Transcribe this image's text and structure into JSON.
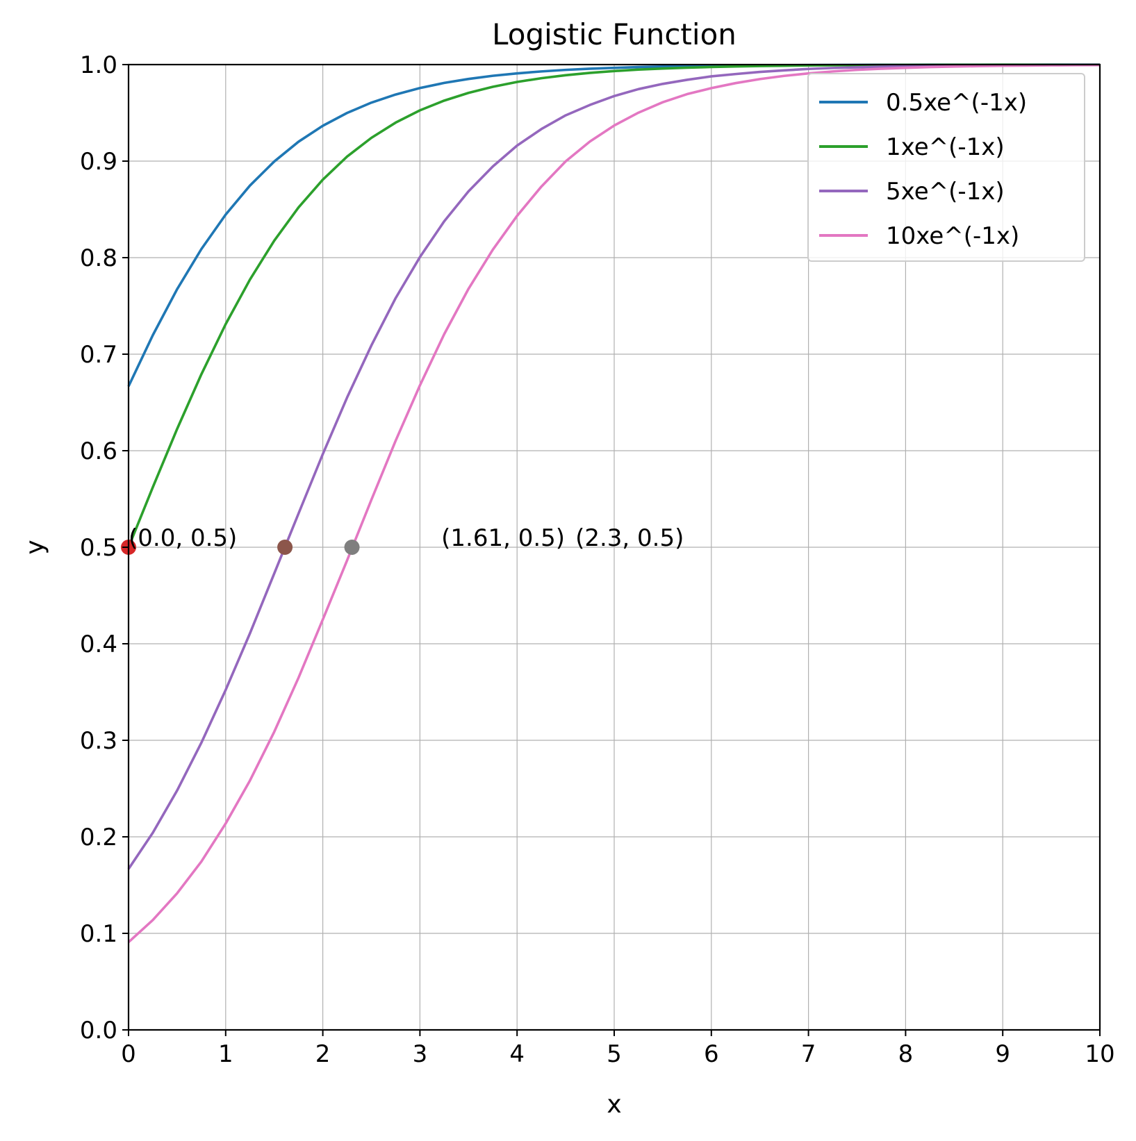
{
  "chart_data": {
    "type": "line",
    "title": "Logistic Function",
    "xlabel": "x",
    "ylabel": "y",
    "xlim": [
      0,
      10
    ],
    "ylim": [
      0,
      1.0
    ],
    "xticks": [
      "0",
      "1",
      "2",
      "3",
      "4",
      "5",
      "6",
      "7",
      "8",
      "9",
      "10"
    ],
    "yticks": [
      "0.0",
      "0.1",
      "0.2",
      "0.3",
      "0.4",
      "0.5",
      "0.6",
      "0.7",
      "0.8",
      "0.9",
      "1.0"
    ],
    "grid": true,
    "legend_position": "upper right",
    "x": [
      0,
      0.25,
      0.5,
      0.75,
      1,
      1.25,
      1.5,
      1.75,
      2,
      2.25,
      2.5,
      2.75,
      3,
      3.25,
      3.5,
      3.75,
      4,
      4.25,
      4.5,
      4.75,
      5,
      5.25,
      5.5,
      5.75,
      6,
      6.25,
      6.5,
      6.75,
      7,
      7.25,
      7.5,
      7.75,
      8,
      8.25,
      8.5,
      8.75,
      9,
      9.25,
      9.5,
      9.75,
      10
    ],
    "series": [
      {
        "name": "0.5xe^(-1x)",
        "color": "#1f77b4",
        "values": [
          0.6667,
          0.7197,
          0.7673,
          0.8089,
          0.8446,
          0.8747,
          0.8996,
          0.9201,
          0.9366,
          0.9499,
          0.9606,
          0.969,
          0.9757,
          0.981,
          0.9851,
          0.9884,
          0.9909,
          0.9929,
          0.9945,
          0.9957,
          0.9966,
          0.9974,
          0.998,
          0.9984,
          0.9988,
          0.999,
          0.9992,
          0.9994,
          0.9995,
          0.9996,
          0.9997,
          0.9998,
          0.9998,
          0.9999,
          0.9999,
          0.9999,
          0.9999,
          0.9999,
          1.0,
          1.0,
          1.0
        ]
      },
      {
        "name": "1xe^(-1x)",
        "color": "#2ca02c",
        "values": [
          0.5,
          0.5622,
          0.6225,
          0.6792,
          0.7311,
          0.7773,
          0.8176,
          0.852,
          0.8808,
          0.9047,
          0.9241,
          0.9399,
          0.9526,
          0.9627,
          0.9707,
          0.977,
          0.982,
          0.9859,
          0.989,
          0.9914,
          0.9933,
          0.9948,
          0.9959,
          0.9968,
          0.9975,
          0.9981,
          0.9985,
          0.9988,
          0.9991,
          0.9993,
          0.9994,
          0.9996,
          0.9997,
          0.9997,
          0.9998,
          0.9998,
          0.9999,
          0.9999,
          0.9999,
          0.9999,
          1.0
        ]
      },
      {
        "name": "5xe^(-1x)",
        "color": "#9467bd",
        "values": [
          0.1667,
          0.2042,
          0.248,
          0.2975,
          0.3522,
          0.4108,
          0.4728,
          0.5349,
          0.5965,
          0.6551,
          0.709,
          0.7581,
          0.8006,
          0.8377,
          0.8687,
          0.8944,
          0.9161,
          0.9332,
          0.9474,
          0.9582,
          0.9674,
          0.9746,
          0.98,
          0.9842,
          0.9878,
          0.9902,
          0.9924,
          0.994,
          0.9955,
          0.9965,
          0.9972,
          0.9978,
          0.9983,
          0.9987,
          0.999,
          0.9992,
          0.9994,
          0.9995,
          0.9996,
          0.9997,
          0.9998
        ]
      },
      {
        "name": "10xe^(-1x)",
        "color": "#e377c2",
        "values": [
          0.0909,
          0.1138,
          0.1415,
          0.1744,
          0.2138,
          0.2583,
          0.3088,
          0.3648,
          0.4251,
          0.4864,
          0.5491,
          0.6104,
          0.6677,
          0.7208,
          0.7677,
          0.8082,
          0.8433,
          0.8736,
          0.8997,
          0.9203,
          0.9369,
          0.9502,
          0.961,
          0.9694,
          0.9756,
          0.9808,
          0.985,
          0.9883,
          0.9909,
          0.9929,
          0.9945,
          0.9957,
          0.9966,
          0.9974,
          0.998,
          0.9984,
          0.9988,
          0.999,
          0.9992,
          0.9994,
          0.9995
        ]
      }
    ],
    "points": [
      {
        "x": 0.0,
        "y": 0.5,
        "color": "#d62728",
        "label": "(0.0, 0.5)",
        "label_x": 0.0,
        "label_y": 0.5
      },
      {
        "x": 1.61,
        "y": 0.5,
        "color": "#8c564b",
        "label": "(1.61, 0.5)",
        "label_x": 3.22,
        "label_y": 0.5
      },
      {
        "x": 2.3,
        "y": 0.5,
        "color": "#7f7f7f",
        "label": "(2.3, 0.5)",
        "label_x": 4.6,
        "label_y": 0.5
      }
    ]
  }
}
